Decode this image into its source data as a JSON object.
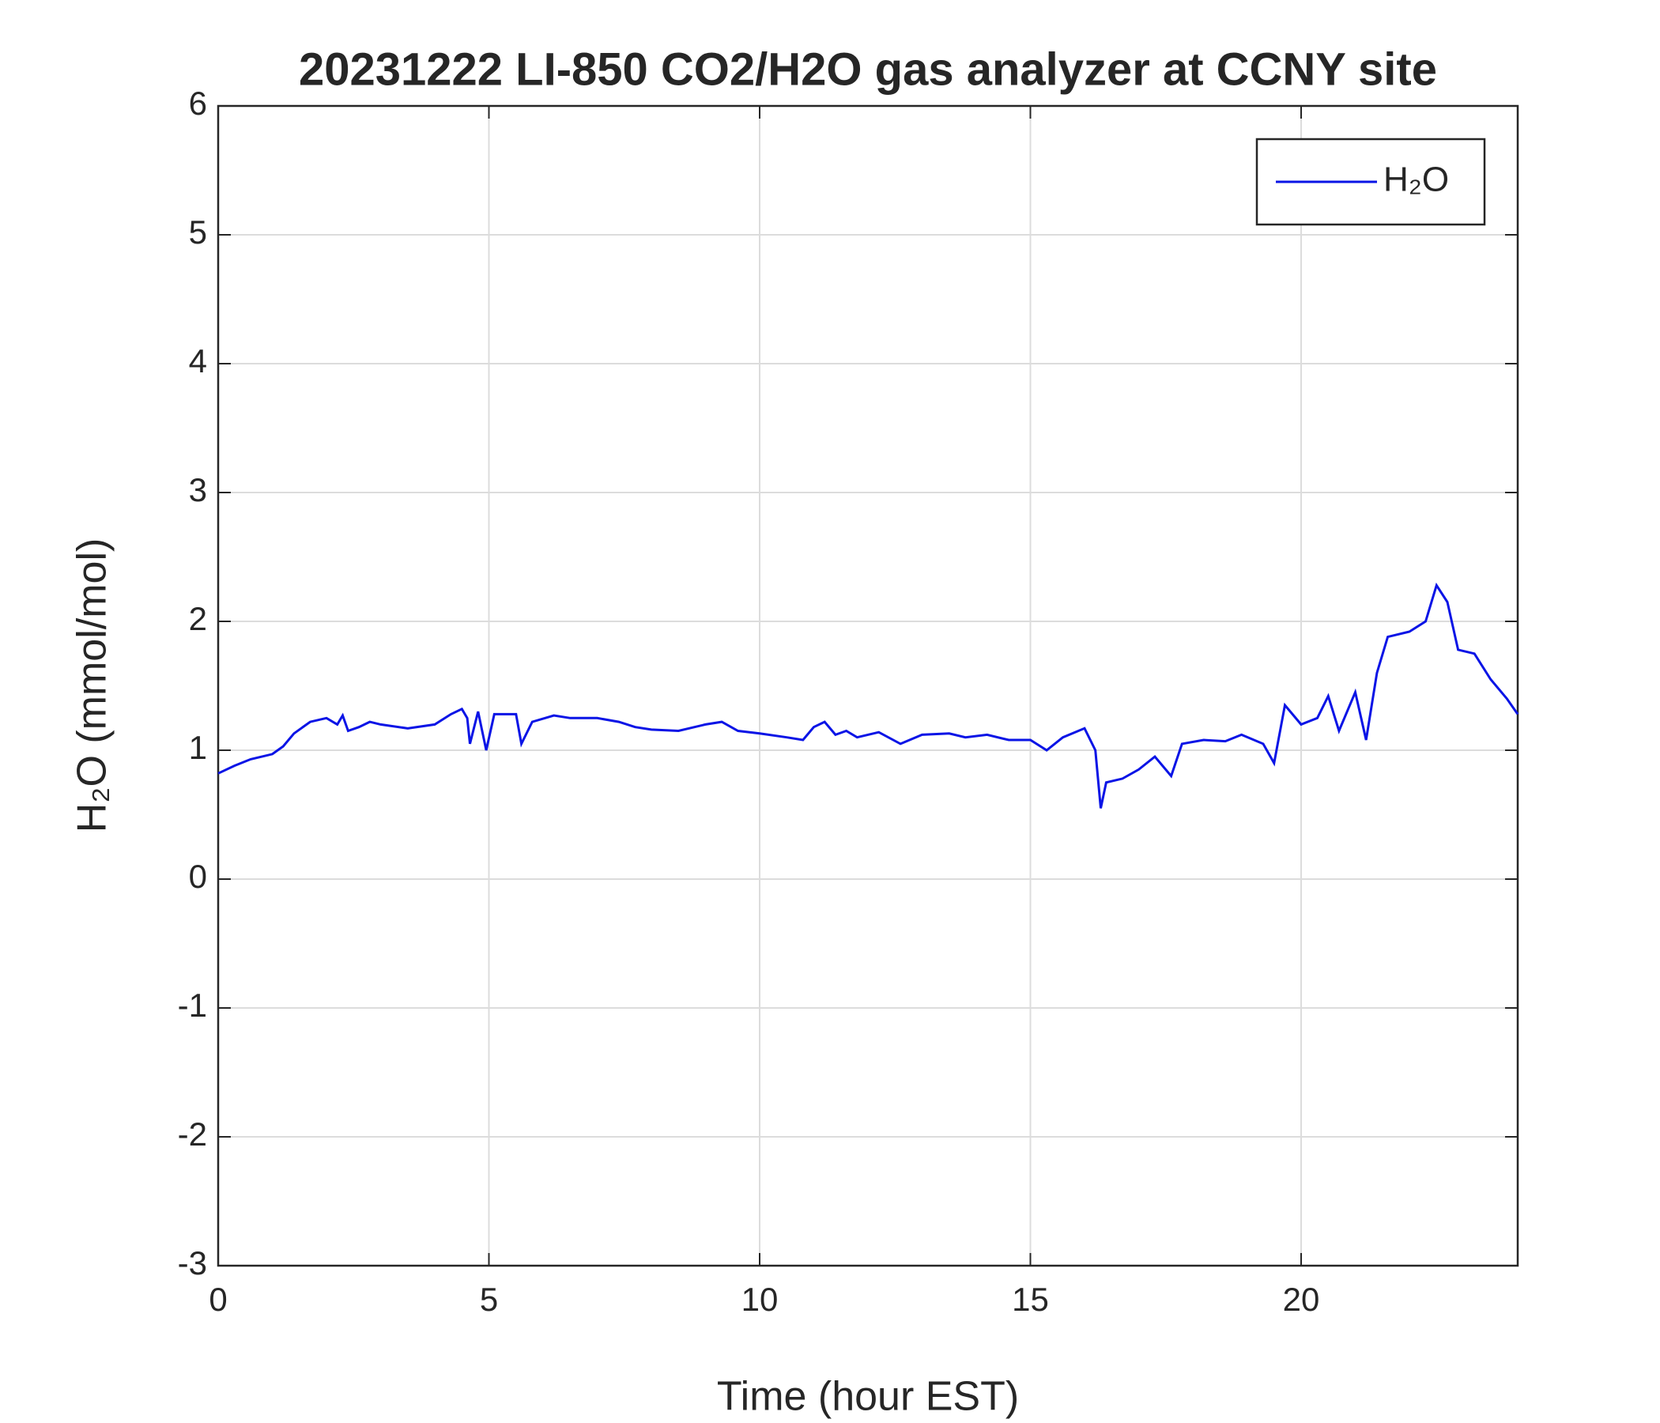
{
  "chart_data": {
    "type": "line",
    "title": "20231222 LI-850 CO2/H2O gas analyzer at CCNY site",
    "xlabel": "Time (hour EST)",
    "ylabel": "H₂O (mmol/mol)",
    "x": [
      0,
      0.3,
      0.6,
      1.0,
      1.2,
      1.4,
      1.7,
      2.0,
      2.2,
      2.3,
      2.4,
      2.6,
      2.8,
      3.0,
      3.5,
      4.0,
      4.3,
      4.5,
      4.6,
      4.65,
      4.8,
      4.95,
      5.1,
      5.5,
      5.6,
      5.8,
      6.2,
      6.5,
      7.0,
      7.4,
      7.7,
      8.0,
      8.5,
      9.0,
      9.3,
      9.6,
      10.0,
      10.5,
      10.8,
      11.0,
      11.2,
      11.4,
      11.6,
      11.8,
      12.2,
      12.6,
      13.0,
      13.5,
      13.8,
      14.2,
      14.6,
      15.0,
      15.3,
      15.6,
      16.0,
      16.2,
      16.3,
      16.4,
      16.7,
      17.0,
      17.3,
      17.6,
      17.8,
      18.2,
      18.6,
      18.9,
      19.3,
      19.5,
      19.7,
      20.0,
      20.3,
      20.5,
      20.7,
      21.0,
      21.2,
      21.4,
      21.6,
      22.0,
      22.3,
      22.5,
      22.7,
      22.9,
      23.2,
      23.5,
      23.8,
      24.0
    ],
    "series": [
      {
        "name": "H₂O",
        "color": "#0a14e6",
        "values": [
          0.82,
          0.88,
          0.93,
          0.97,
          1.03,
          1.13,
          1.22,
          1.25,
          1.2,
          1.27,
          1.15,
          1.18,
          1.22,
          1.2,
          1.17,
          1.2,
          1.28,
          1.32,
          1.25,
          1.05,
          1.3,
          1.0,
          1.28,
          1.28,
          1.05,
          1.22,
          1.27,
          1.25,
          1.25,
          1.22,
          1.18,
          1.16,
          1.15,
          1.2,
          1.22,
          1.15,
          1.13,
          1.1,
          1.08,
          1.18,
          1.22,
          1.12,
          1.15,
          1.1,
          1.14,
          1.05,
          1.12,
          1.13,
          1.1,
          1.12,
          1.08,
          1.08,
          1.0,
          1.1,
          1.17,
          1.0,
          0.55,
          0.75,
          0.78,
          0.85,
          0.95,
          0.8,
          1.05,
          1.08,
          1.07,
          1.12,
          1.05,
          0.9,
          1.35,
          1.2,
          1.25,
          1.42,
          1.15,
          1.45,
          1.08,
          1.6,
          1.88,
          1.92,
          2.0,
          2.28,
          2.15,
          1.78,
          1.75,
          1.55,
          1.4,
          1.28
        ]
      }
    ],
    "xlim": [
      0,
      24
    ],
    "xticks": [
      0,
      5,
      10,
      15,
      20
    ],
    "ylim": [
      -3,
      6
    ],
    "yticks": [
      -3,
      -2,
      -1,
      0,
      1,
      2,
      3,
      4,
      5,
      6
    ],
    "grid": true,
    "legend": "northeast"
  }
}
